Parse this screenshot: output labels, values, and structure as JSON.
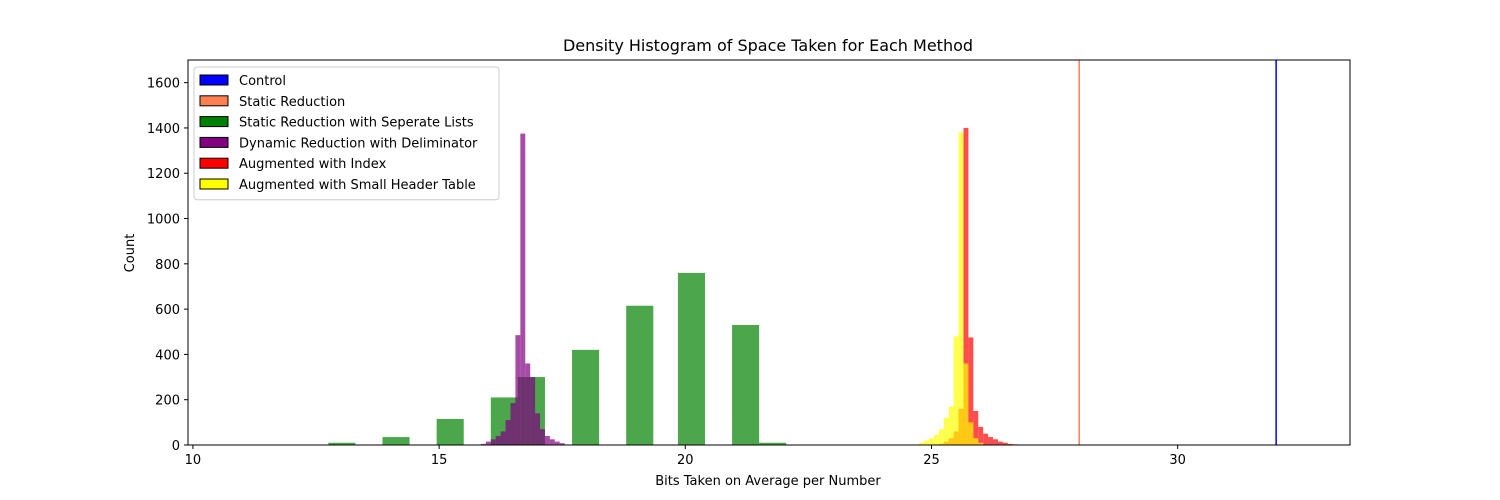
{
  "chart_data": {
    "type": "bar",
    "title": "Density Histogram of Space Taken for Each Method",
    "xlabel": "Bits Taken on Average per Number",
    "ylabel": "Count",
    "xlim": [
      9.9,
      33.5
    ],
    "ylim": [
      0,
      1700
    ],
    "xticks": [
      10,
      15,
      20,
      25,
      30
    ],
    "yticks": [
      0,
      200,
      400,
      600,
      800,
      1000,
      1200,
      1400,
      1600
    ],
    "grid": false,
    "legend_position": "top-left",
    "bar_opacity": 0.7,
    "series": [
      {
        "name": "Control",
        "color": "#0000ff",
        "kind": "vline",
        "x": 32.0
      },
      {
        "name": "Static Reduction",
        "color": "#ff7f50",
        "kind": "vline",
        "x": 28.0
      },
      {
        "name": "Static Reduction with Seperate Lists",
        "color": "#008000",
        "kind": "hist",
        "bins": [
          {
            "x0": 12.75,
            "x1": 13.3,
            "value": 10
          },
          {
            "x0": 13.85,
            "x1": 14.4,
            "value": 35
          },
          {
            "x0": 14.95,
            "x1": 15.5,
            "value": 115
          },
          {
            "x0": 16.05,
            "x1": 16.6,
            "value": 210
          },
          {
            "x0": 16.6,
            "x1": 17.15,
            "value": 300
          },
          {
            "x0": 17.7,
            "x1": 18.25,
            "value": 420
          },
          {
            "x0": 18.8,
            "x1": 19.35,
            "value": 615
          },
          {
            "x0": 19.85,
            "x1": 20.4,
            "value": 760
          },
          {
            "x0": 20.95,
            "x1": 21.5,
            "value": 530
          },
          {
            "x0": 21.5,
            "x1": 22.05,
            "value": 10
          }
        ]
      },
      {
        "name": "Dynamic Reduction with Deliminator",
        "color": "#800080",
        "kind": "hist",
        "bins": [
          {
            "x0": 15.85,
            "x1": 15.95,
            "value": 5
          },
          {
            "x0": 15.95,
            "x1": 16.05,
            "value": 15
          },
          {
            "x0": 16.05,
            "x1": 16.15,
            "value": 25
          },
          {
            "x0": 16.15,
            "x1": 16.25,
            "value": 40
          },
          {
            "x0": 16.25,
            "x1": 16.35,
            "value": 60
          },
          {
            "x0": 16.35,
            "x1": 16.45,
            "value": 110
          },
          {
            "x0": 16.45,
            "x1": 16.55,
            "value": 185
          },
          {
            "x0": 16.55,
            "x1": 16.65,
            "value": 485
          },
          {
            "x0": 16.65,
            "x1": 16.75,
            "value": 1375
          },
          {
            "x0": 16.75,
            "x1": 16.85,
            "value": 360
          },
          {
            "x0": 16.85,
            "x1": 16.95,
            "value": 300
          },
          {
            "x0": 16.95,
            "x1": 17.05,
            "value": 140
          },
          {
            "x0": 17.05,
            "x1": 17.15,
            "value": 70
          },
          {
            "x0": 17.15,
            "x1": 17.25,
            "value": 40
          },
          {
            "x0": 17.25,
            "x1": 17.35,
            "value": 25
          },
          {
            "x0": 17.35,
            "x1": 17.45,
            "value": 15
          },
          {
            "x0": 17.45,
            "x1": 17.55,
            "value": 8
          }
        ]
      },
      {
        "name": "Augmented with Index",
        "color": "#ff0000",
        "kind": "hist",
        "bins": [
          {
            "x0": 25.15,
            "x1": 25.25,
            "value": 5
          },
          {
            "x0": 25.25,
            "x1": 25.35,
            "value": 15
          },
          {
            "x0": 25.35,
            "x1": 25.45,
            "value": 30
          },
          {
            "x0": 25.45,
            "x1": 25.55,
            "value": 60
          },
          {
            "x0": 25.55,
            "x1": 25.65,
            "value": 160
          },
          {
            "x0": 25.65,
            "x1": 25.75,
            "value": 1400
          },
          {
            "x0": 25.75,
            "x1": 25.85,
            "value": 475
          },
          {
            "x0": 25.85,
            "x1": 25.95,
            "value": 150
          },
          {
            "x0": 25.95,
            "x1": 26.05,
            "value": 80
          },
          {
            "x0": 26.05,
            "x1": 26.15,
            "value": 50
          },
          {
            "x0": 26.15,
            "x1": 26.25,
            "value": 35
          },
          {
            "x0": 26.25,
            "x1": 26.35,
            "value": 25
          },
          {
            "x0": 26.35,
            "x1": 26.45,
            "value": 15
          },
          {
            "x0": 26.45,
            "x1": 26.55,
            "value": 10
          },
          {
            "x0": 26.55,
            "x1": 26.65,
            "value": 5
          },
          {
            "x0": 26.65,
            "x1": 26.75,
            "value": 3
          }
        ]
      },
      {
        "name": "Augmented with Small Header Table",
        "color": "#ffff00",
        "kind": "hist",
        "bins": [
          {
            "x0": 24.75,
            "x1": 24.85,
            "value": 10
          },
          {
            "x0": 24.85,
            "x1": 24.95,
            "value": 20
          },
          {
            "x0": 24.95,
            "x1": 25.05,
            "value": 30
          },
          {
            "x0": 25.05,
            "x1": 25.15,
            "value": 45
          },
          {
            "x0": 25.15,
            "x1": 25.25,
            "value": 70
          },
          {
            "x0": 25.25,
            "x1": 25.35,
            "value": 120
          },
          {
            "x0": 25.35,
            "x1": 25.45,
            "value": 170
          },
          {
            "x0": 25.45,
            "x1": 25.55,
            "value": 480
          },
          {
            "x0": 25.55,
            "x1": 25.65,
            "value": 1380
          },
          {
            "x0": 25.65,
            "x1": 25.75,
            "value": 360
          },
          {
            "x0": 25.75,
            "x1": 25.85,
            "value": 100
          },
          {
            "x0": 25.85,
            "x1": 25.95,
            "value": 30
          },
          {
            "x0": 25.95,
            "x1": 26.05,
            "value": 10
          }
        ]
      }
    ]
  }
}
